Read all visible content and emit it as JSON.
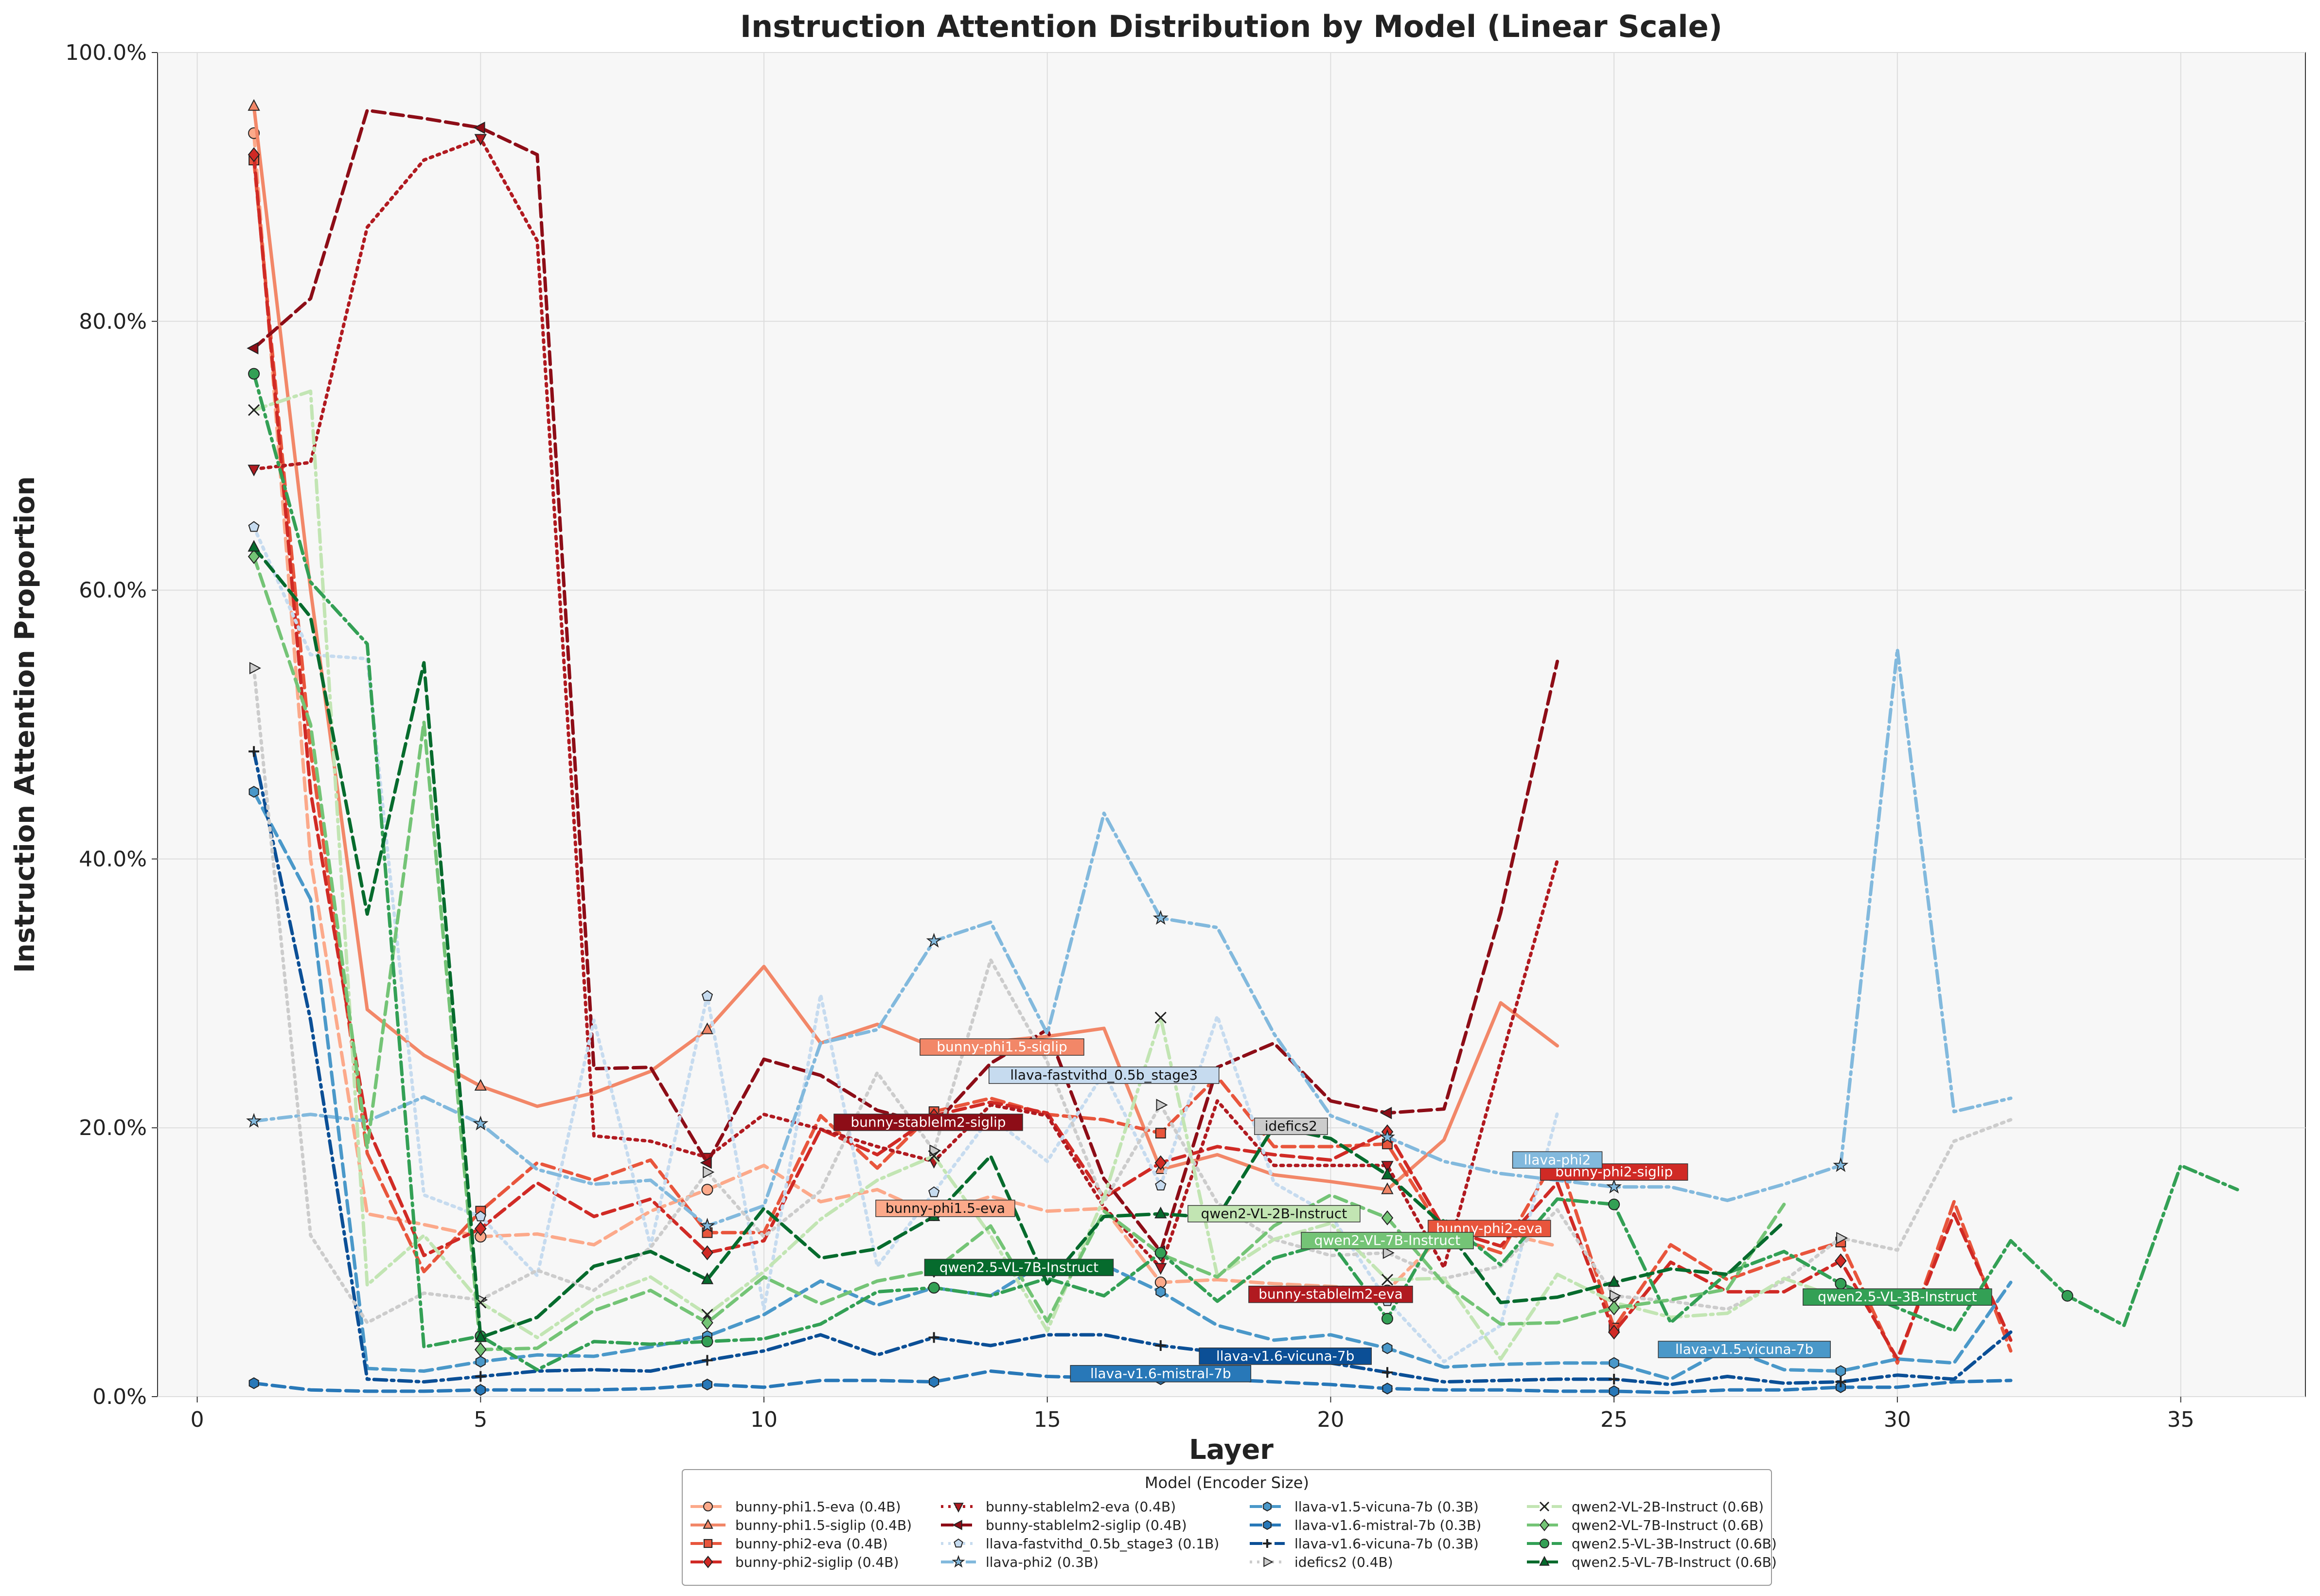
{
  "chart_data": {
    "type": "line",
    "title": "Instruction Attention Distribution by Model (Linear Scale)",
    "xlabel": "Layer",
    "ylabel": "Instruction Attention Proportion",
    "xlim": [
      -0.7,
      37.2
    ],
    "ylim": [
      0,
      100
    ],
    "xticks": [
      0,
      5,
      10,
      15,
      20,
      25,
      30,
      35
    ],
    "yticks": [
      0,
      20,
      40,
      60,
      80,
      100
    ],
    "ytick_labels": [
      "0.0%",
      "20.0%",
      "40.0%",
      "60.0%",
      "80.0%",
      "100.0%"
    ],
    "grid": true,
    "legend_title": "Model (Encoder Size)",
    "legend_position": "bottom-center",
    "series": [
      {
        "name": "bunny-phi1.5-eva (0.4B)",
        "color": "#fca98a",
        "dash": "dashed",
        "marker": "circle",
        "label": "bunny-phi1.5-eva",
        "label_at": [
          13.2,
          13.9
        ],
        "x": [
          1,
          2,
          3,
          4,
          5,
          6,
          7,
          8,
          9,
          10,
          11,
          12,
          13,
          14,
          15,
          16,
          17,
          18,
          19,
          20,
          21,
          22,
          23,
          24
        ],
        "y": [
          94,
          40,
          13.6,
          12.8,
          11.9,
          12.1,
          11.3,
          13.8,
          15.4,
          17.2,
          14.5,
          15.4,
          13.5,
          14.9,
          13.8,
          14,
          8.5,
          8.7,
          8.4,
          8.2,
          7.9,
          12.1,
          12.2,
          11.2
        ]
      },
      {
        "name": "bunny-phi1.5-siglip (0.4B)",
        "color": "#f28768",
        "dash": "solid",
        "marker": "triangle",
        "label": "bunny-phi1.5-siglip",
        "label_at": [
          14.2,
          25.9
        ],
        "x": [
          1,
          2,
          3,
          4,
          5,
          6,
          7,
          8,
          9,
          10,
          11,
          12,
          13,
          14,
          15,
          16,
          17,
          18,
          19,
          20,
          21,
          22,
          23,
          24
        ],
        "y": [
          96,
          60,
          28.8,
          25.4,
          23.1,
          21.6,
          22.6,
          24.2,
          27.3,
          32,
          26.3,
          27.7,
          26,
          26.4,
          26.8,
          27.4,
          16.9,
          18,
          16.5,
          16,
          15.4,
          19.1,
          29.3,
          26.1
        ]
      },
      {
        "name": "bunny-phi2-eva (0.4B)",
        "color": "#e8553c",
        "dash": "dashed",
        "marker": "square",
        "label": "bunny-phi2-eva",
        "label_at": [
          22.8,
          12.4
        ],
        "x": [
          1,
          2,
          3,
          4,
          5,
          6,
          7,
          8,
          9,
          10,
          11,
          12,
          13,
          14,
          15,
          16,
          17,
          18,
          19,
          20,
          21,
          22,
          23,
          24,
          25,
          26,
          27,
          28,
          29,
          30,
          31,
          32
        ],
        "y": [
          92,
          48,
          18.1,
          9.3,
          13.8,
          17.4,
          16.1,
          17.6,
          12.2,
          12.2,
          20.9,
          17,
          21.2,
          22.2,
          21,
          20.6,
          19.6,
          23.8,
          18.6,
          18.6,
          18.8,
          12.1,
          10.7,
          18,
          5.1,
          11.3,
          8.7,
          10.2,
          11.5,
          2.5,
          14.5,
          3.4
        ]
      },
      {
        "name": "bunny-phi2-siglip (0.4B)",
        "color": "#d02a25",
        "dash": "dashed",
        "marker": "diamond",
        "label": "bunny-phi2-siglip",
        "label_at": [
          25.0,
          16.6
        ],
        "x": [
          1,
          2,
          3,
          4,
          5,
          6,
          7,
          8,
          9,
          10,
          11,
          12,
          13,
          14,
          15,
          16,
          17,
          18,
          19,
          20,
          21,
          22,
          23,
          24,
          25,
          26,
          27,
          28,
          29,
          30,
          31,
          32
        ],
        "y": [
          92.4,
          45,
          20.1,
          10.5,
          12.5,
          15.9,
          13.4,
          14.7,
          10.7,
          11.6,
          19.9,
          18,
          20.9,
          21.9,
          21.1,
          14.8,
          17.4,
          18.6,
          18,
          17.6,
          19.7,
          12.5,
          11.2,
          15.9,
          4.8,
          10,
          7.8,
          7.8,
          10.1,
          2.8,
          13.6,
          4.2
        ]
      },
      {
        "name": "bunny-stablelm2-eva (0.4B)",
        "color": "#b11a20",
        "dash": "dotted",
        "marker": "triangle-down",
        "label": "bunny-stablelm2-eva",
        "label_at": [
          20.0,
          7.5
        ],
        "x": [
          1,
          2,
          3,
          4,
          5,
          6,
          7,
          8,
          9,
          10,
          11,
          12,
          13,
          14,
          15,
          16,
          17,
          18,
          19,
          20,
          21,
          22,
          23,
          24
        ],
        "y": [
          69,
          69.5,
          87,
          92,
          93.6,
          86,
          19.4,
          19,
          17.8,
          21,
          19.9,
          18.6,
          17.5,
          21.7,
          20.9,
          14.1,
          9.6,
          22,
          17.2,
          17.2,
          17.2,
          9.6,
          25,
          39.9
        ]
      },
      {
        "name": "bunny-stablelm2-siglip (0.4B)",
        "color": "#8d0d17",
        "dash": "dashed",
        "marker": "triangle-left",
        "label": "bunny-stablelm2-siglip",
        "label_at": [
          12.9,
          20.3
        ],
        "x": [
          1,
          2,
          3,
          4,
          5,
          6,
          7,
          8,
          9,
          10,
          11,
          12,
          13,
          14,
          15,
          16,
          17,
          18,
          19,
          20,
          21,
          22,
          23,
          24
        ],
        "y": [
          78,
          81.7,
          95.7,
          95.1,
          94.4,
          92.4,
          24.4,
          24.5,
          17.4,
          25.1,
          23.9,
          21.3,
          20.2,
          24.8,
          27.3,
          16.2,
          10.8,
          24.5,
          26.3,
          22,
          21.1,
          21.4,
          36,
          54.7
        ]
      },
      {
        "name": "llava-fastvithd_0.5b_stage3 (0.1B)",
        "color": "#c6dbef",
        "dash": "dotted",
        "marker": "pentagon",
        "label": "llava-fastvithd_0.5b_stage3",
        "label_at": [
          16.0,
          23.8
        ],
        "x": [
          1,
          2,
          3,
          4,
          5,
          6,
          7,
          8,
          9,
          10,
          11,
          12,
          13,
          14,
          15,
          16,
          17,
          18,
          19,
          20,
          21,
          22,
          23,
          24
        ],
        "y": [
          64.7,
          55.2,
          54.9,
          15,
          13.4,
          9,
          28,
          11.2,
          29.8,
          6.5,
          29.9,
          9.7,
          15.2,
          20.8,
          17.5,
          24.1,
          15.7,
          28.3,
          15.9,
          13.5,
          7.1,
          2.6,
          5.3,
          21.1
        ]
      },
      {
        "name": "llava-phi2 (0.3B)",
        "color": "#82b9dd",
        "dash": "dashdot",
        "marker": "star",
        "label": "llava-phi2",
        "label_at": [
          24.0,
          17.5
        ],
        "x": [
          1,
          2,
          3,
          4,
          5,
          6,
          7,
          8,
          9,
          10,
          11,
          12,
          13,
          14,
          15,
          16,
          17,
          18,
          19,
          20,
          21,
          22,
          23,
          24,
          25,
          26,
          27,
          28,
          29,
          30,
          31,
          32
        ],
        "y": [
          20.5,
          21,
          20.5,
          22.3,
          20.3,
          16.9,
          15.8,
          16.1,
          12.7,
          14.2,
          26.3,
          27.3,
          33.9,
          35.3,
          27,
          43.4,
          35.6,
          34.9,
          27,
          20.9,
          19.3,
          17.5,
          16.6,
          16.1,
          15.6,
          15.6,
          14.6,
          15.8,
          17.2,
          55.6,
          21.2,
          22.2
        ]
      },
      {
        "name": "llava-v1.5-vicuna-7b (0.3B)",
        "color": "#4a98c9",
        "dash": "dashed",
        "marker": "hexagon",
        "label": "llava-v1.5-vicuna-7b",
        "label_at": [
          27.3,
          3.4
        ],
        "x": [
          1,
          2,
          3,
          4,
          5,
          6,
          7,
          8,
          9,
          10,
          11,
          12,
          13,
          14,
          15,
          16,
          17,
          18,
          19,
          20,
          21,
          22,
          23,
          24,
          25,
          26,
          27,
          28,
          29,
          30,
          31,
          32
        ],
        "y": [
          45,
          37,
          2.1,
          1.9,
          2.6,
          3.1,
          3,
          3.7,
          4.5,
          6.1,
          8.6,
          6.8,
          8.1,
          7.5,
          10.1,
          9.8,
          7.8,
          5.3,
          4.2,
          4.6,
          3.6,
          2.2,
          2.4,
          2.5,
          2.5,
          1.3,
          3.6,
          2,
          1.9,
          2.8,
          2.5,
          8.5
        ]
      },
      {
        "name": "llava-v1.6-mistral-7b (0.3B)",
        "color": "#2878b8",
        "dash": "dashed",
        "marker": "hexagon",
        "label": "llava-v1.6-mistral-7b",
        "label_at": [
          17.0,
          1.6
        ],
        "x": [
          1,
          2,
          3,
          4,
          5,
          6,
          7,
          8,
          9,
          10,
          11,
          12,
          13,
          14,
          15,
          16,
          17,
          18,
          19,
          20,
          21,
          22,
          23,
          24,
          25,
          26,
          27,
          28,
          29,
          30,
          31,
          32
        ],
        "y": [
          1,
          0.5,
          0.4,
          0.4,
          0.5,
          0.5,
          0.5,
          0.6,
          0.9,
          0.7,
          1.2,
          1.2,
          1.1,
          1.9,
          1.5,
          1.4,
          1.3,
          1.3,
          1.1,
          0.9,
          0.6,
          0.5,
          0.5,
          0.4,
          0.4,
          0.3,
          0.5,
          0.5,
          0.7,
          0.7,
          1.1,
          1.2
        ]
      },
      {
        "name": "llava-v1.6-vicuna-7b (0.3B)",
        "color": "#0b4f96",
        "dash": "dashdot",
        "marker": "plus",
        "label": "llava-v1.6-vicuna-7b",
        "label_at": [
          19.2,
          2.9
        ],
        "x": [
          1,
          2,
          3,
          4,
          5,
          6,
          7,
          8,
          9,
          10,
          11,
          12,
          13,
          14,
          15,
          16,
          17,
          18,
          19,
          20,
          21,
          22,
          23,
          24,
          25,
          26,
          27,
          28,
          29,
          30,
          31,
          32
        ],
        "y": [
          48,
          28,
          1.3,
          1.1,
          1.5,
          1.9,
          2,
          1.9,
          2.7,
          3.4,
          4.6,
          3.1,
          4.4,
          3.8,
          4.6,
          4.6,
          3.8,
          3.3,
          2.8,
          2.5,
          1.8,
          1.1,
          1.2,
          1.3,
          1.3,
          0.9,
          1.5,
          1,
          1.1,
          1.6,
          1.3,
          4.8
        ]
      },
      {
        "name": "idefics2 (0.4B)",
        "color": "#cccccc",
        "dash": "dotted",
        "marker": "triangle-right",
        "label": "idefics2",
        "label_at": [
          19.3,
          20.0
        ],
        "x": [
          1,
          2,
          3,
          4,
          5,
          6,
          7,
          8,
          9,
          10,
          11,
          12,
          13,
          14,
          15,
          16,
          17,
          18,
          19,
          20,
          21,
          22,
          23,
          24,
          25,
          26,
          27,
          28,
          29,
          30,
          31,
          32
        ],
        "y": [
          54.2,
          12,
          5.5,
          7.7,
          7.2,
          9.4,
          7.9,
          11.1,
          16.7,
          11.9,
          15.3,
          24.1,
          18.3,
          32.5,
          24.9,
          14.5,
          21.7,
          14.4,
          11.7,
          10.5,
          10.7,
          8.8,
          9.7,
          13.9,
          7.5,
          7.1,
          6.5,
          8.6,
          11.8,
          10.9,
          19,
          20.6
        ]
      },
      {
        "name": "qwen2-VL-2B-Instruct (0.6B)",
        "color": "#c2e5b3",
        "dash": "dashdot",
        "marker": "x",
        "label": "qwen2-VL-2B-Instruct",
        "label_at": [
          19.0,
          13.5
        ],
        "x": [
          1,
          2,
          3,
          4,
          5,
          6,
          7,
          8,
          9,
          10,
          11,
          12,
          13,
          14,
          15,
          16,
          17,
          18,
          19,
          20,
          21,
          22,
          23,
          24,
          25,
          26,
          27,
          28,
          29
        ],
        "y": [
          73.4,
          74.8,
          8.3,
          12,
          7,
          4.4,
          7.3,
          8.9,
          6.1,
          9.3,
          13.2,
          16.1,
          17.9,
          12,
          4.9,
          14.8,
          28.2,
          9,
          11.7,
          12.9,
          8.7,
          8.8,
          2.8,
          9.1,
          7,
          5.9,
          6.2,
          8.8,
          7.3
        ]
      },
      {
        "name": "qwen2-VL-7B-Instruct (0.6B)",
        "color": "#74c476",
        "dash": "dashed",
        "marker": "diamond",
        "label": "qwen2-VL-7B-Instruct",
        "label_at": [
          21.0,
          11.5
        ],
        "x": [
          1,
          2,
          3,
          4,
          5,
          6,
          7,
          8,
          9,
          10,
          11,
          12,
          13,
          14,
          15,
          16,
          17,
          18,
          19,
          20,
          21,
          22,
          23,
          24,
          25,
          26,
          27,
          28
        ],
        "y": [
          62.5,
          50,
          18.5,
          50.2,
          3.5,
          3.6,
          6.4,
          7.9,
          5.5,
          8.9,
          6.9,
          8.6,
          9.4,
          12.7,
          5.6,
          13.8,
          10.6,
          8.9,
          12.7,
          15,
          13.3,
          8.4,
          5.4,
          5.5,
          6.6,
          7.2,
          8,
          14.3
        ]
      },
      {
        "name": "qwen2.5-VL-3B-Instruct (0.6B)",
        "color": "#33a055",
        "dash": "dashdot",
        "marker": "circle",
        "label": "qwen2.5-VL-3B-Instruct",
        "label_at": [
          30.0,
          7.3
        ],
        "x": [
          1,
          2,
          3,
          4,
          5,
          6,
          7,
          8,
          9,
          10,
          11,
          12,
          13,
          14,
          15,
          16,
          17,
          18,
          19,
          20,
          21,
          22,
          23,
          24,
          25,
          26,
          27,
          28,
          29,
          30,
          31,
          32,
          33,
          34,
          35,
          36
        ],
        "y": [
          76.1,
          60.6,
          56,
          3.7,
          4.5,
          2,
          4.1,
          3.9,
          4.1,
          4.3,
          5.4,
          7.8,
          8.1,
          7.5,
          8.8,
          7.5,
          10.7,
          7.1,
          10.3,
          11.5,
          5.8,
          13.2,
          9.8,
          14.7,
          14.3,
          5.5,
          9.2,
          10.8,
          8.4,
          6.6,
          4.9,
          11.6,
          7.5,
          5.3,
          17.2,
          15.4
        ]
      },
      {
        "name": "qwen2.5-VL-7B-Instruct (0.6B)",
        "color": "#066b2d",
        "dash": "dashed",
        "marker": "triangle",
        "label": "qwen2.5-VL-7B-Instruct",
        "label_at": [
          14.5,
          9.5
        ],
        "x": [
          1,
          2,
          3,
          4,
          5,
          6,
          7,
          8,
          9,
          10,
          11,
          12,
          13,
          14,
          15,
          16,
          17,
          18,
          19,
          20,
          21,
          22,
          23,
          24,
          25,
          26,
          27,
          28
        ],
        "y": [
          63.2,
          58,
          35.9,
          54.6,
          4.4,
          5.9,
          9.7,
          10.8,
          8.7,
          14,
          10.3,
          11,
          13.4,
          17.9,
          8.4,
          13.4,
          13.6,
          13.3,
          20.1,
          19.2,
          16.5,
          12.7,
          7,
          7.4,
          8.5,
          9.5,
          9.1,
          13
        ]
      }
    ]
  }
}
